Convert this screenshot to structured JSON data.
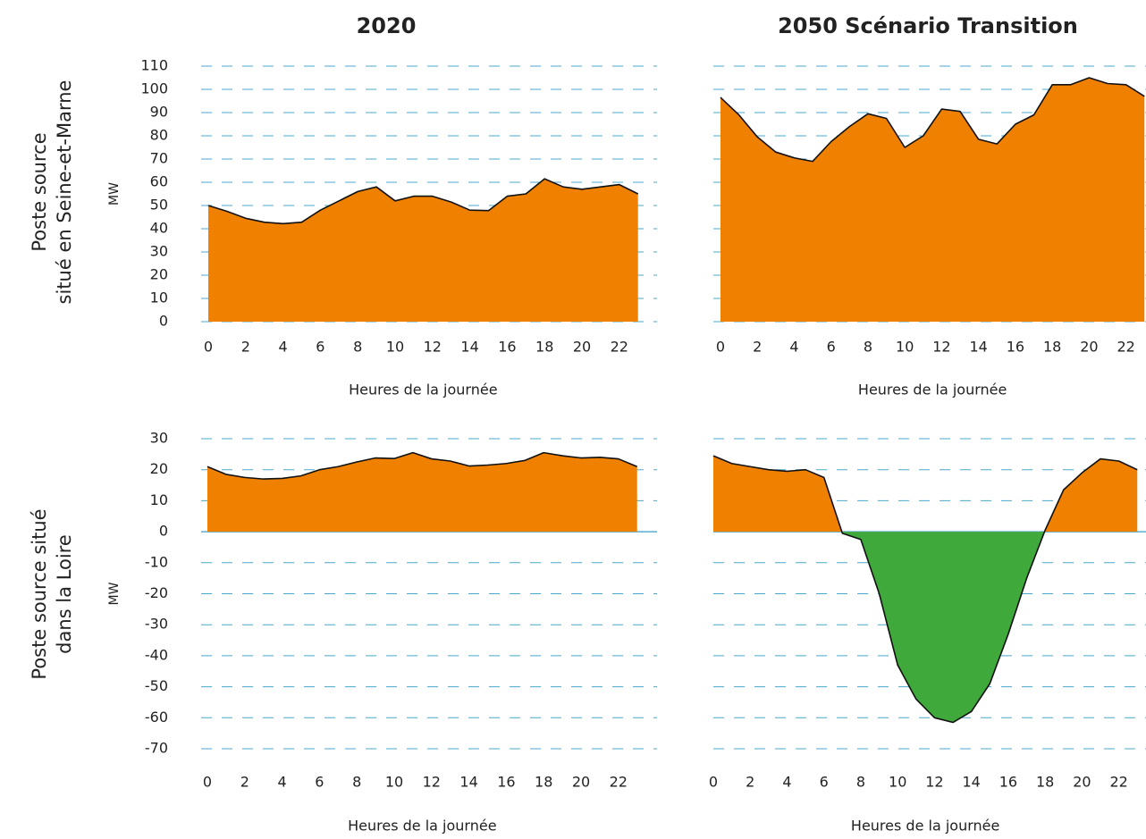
{
  "chart_data": [
    {
      "type": "area",
      "title": "2020",
      "row_label": [
        "Poste source",
        "situé en Seine-et-Marne"
      ],
      "ylabel": "MW",
      "xlabel": "Heures de la journée",
      "x": [
        0,
        1,
        2,
        3,
        4,
        5,
        6,
        7,
        8,
        9,
        10,
        11,
        12,
        13,
        14,
        15,
        16,
        17,
        18,
        19,
        20,
        21,
        22,
        23
      ],
      "values": [
        50,
        47.5,
        44.5,
        42.8,
        42.2,
        42.8,
        48,
        52,
        56,
        58,
        52,
        54,
        54,
        51.5,
        48,
        47.8,
        54,
        55,
        61.5,
        58,
        57,
        58,
        59,
        55
      ],
      "color": "#f08000",
      "ylim": [
        0,
        110
      ],
      "yticks": [
        0,
        10,
        20,
        30,
        40,
        50,
        60,
        70,
        80,
        90,
        100,
        110
      ],
      "xticks": [
        0,
        2,
        4,
        6,
        8,
        10,
        12,
        14,
        16,
        18,
        20,
        22
      ],
      "grid": true
    },
    {
      "type": "area",
      "title": "2050 Scénario Transition",
      "xlabel": "Heures de la journée",
      "x": [
        0,
        1,
        2,
        3,
        4,
        5,
        6,
        7,
        8,
        9,
        10,
        11,
        12,
        13,
        14,
        15,
        16,
        17,
        18,
        19,
        20,
        21,
        22,
        23
      ],
      "values": [
        96.5,
        89,
        79.5,
        73,
        70.5,
        69,
        77.5,
        84,
        89.5,
        87.5,
        75,
        80,
        91.5,
        90.5,
        78.5,
        76.5,
        85,
        89,
        102,
        102,
        105,
        102.5,
        102,
        97
      ],
      "color": "#f08000",
      "ylim": [
        0,
        110
      ],
      "yticks": [
        0,
        10,
        20,
        30,
        40,
        50,
        60,
        70,
        80,
        90,
        100,
        110
      ],
      "xticks": [
        0,
        2,
        4,
        6,
        8,
        10,
        12,
        14,
        16,
        18,
        20,
        22
      ],
      "grid": true,
      "show_yticks": false
    },
    {
      "type": "area",
      "row_label": [
        "Poste source situé",
        "dans la Loire"
      ],
      "ylabel": "MW",
      "xlabel": "Heures de la journée",
      "x": [
        0,
        1,
        2,
        3,
        4,
        5,
        6,
        7,
        8,
        9,
        10,
        11,
        12,
        13,
        14,
        15,
        16,
        17,
        18,
        19,
        20,
        21,
        22,
        23
      ],
      "values": [
        21,
        18.5,
        17.5,
        17,
        17.2,
        18,
        20,
        21,
        22.5,
        23.8,
        23.6,
        25.5,
        23.5,
        22.8,
        21.2,
        21.5,
        22,
        23,
        25.5,
        24.5,
        23.8,
        24,
        23.5,
        21
      ],
      "color": "#f08000",
      "negative_color": "#3fa93b",
      "ylim": [
        -70,
        30
      ],
      "yticks": [
        30,
        20,
        10,
        0,
        -10,
        -20,
        -30,
        -40,
        -50,
        -60,
        -70
      ],
      "xticks": [
        0,
        2,
        4,
        6,
        8,
        10,
        12,
        14,
        16,
        18,
        20,
        22
      ],
      "grid": true
    },
    {
      "type": "area",
      "xlabel": "Heures de la journée",
      "x": [
        0,
        1,
        2,
        3,
        4,
        5,
        6,
        7,
        8,
        9,
        10,
        11,
        12,
        13,
        14,
        15,
        16,
        17,
        18,
        19,
        20,
        21,
        22,
        23
      ],
      "values": [
        24.5,
        22,
        21,
        20,
        19.5,
        20,
        17.5,
        -0.5,
        -2.5,
        -20,
        -43,
        -54,
        -60,
        -61.5,
        -58,
        -49,
        -33,
        -15,
        0.5,
        13.5,
        19,
        23.5,
        22.8,
        20
      ],
      "color": "#f08000",
      "negative_color": "#3fa93b",
      "ylim": [
        -70,
        30
      ],
      "yticks": [
        30,
        20,
        10,
        0,
        -10,
        -20,
        -30,
        -40,
        -50,
        -60,
        -70
      ],
      "xticks": [
        0,
        2,
        4,
        6,
        8,
        10,
        12,
        14,
        16,
        18,
        20,
        22
      ],
      "grid": true,
      "show_yticks": false
    }
  ]
}
